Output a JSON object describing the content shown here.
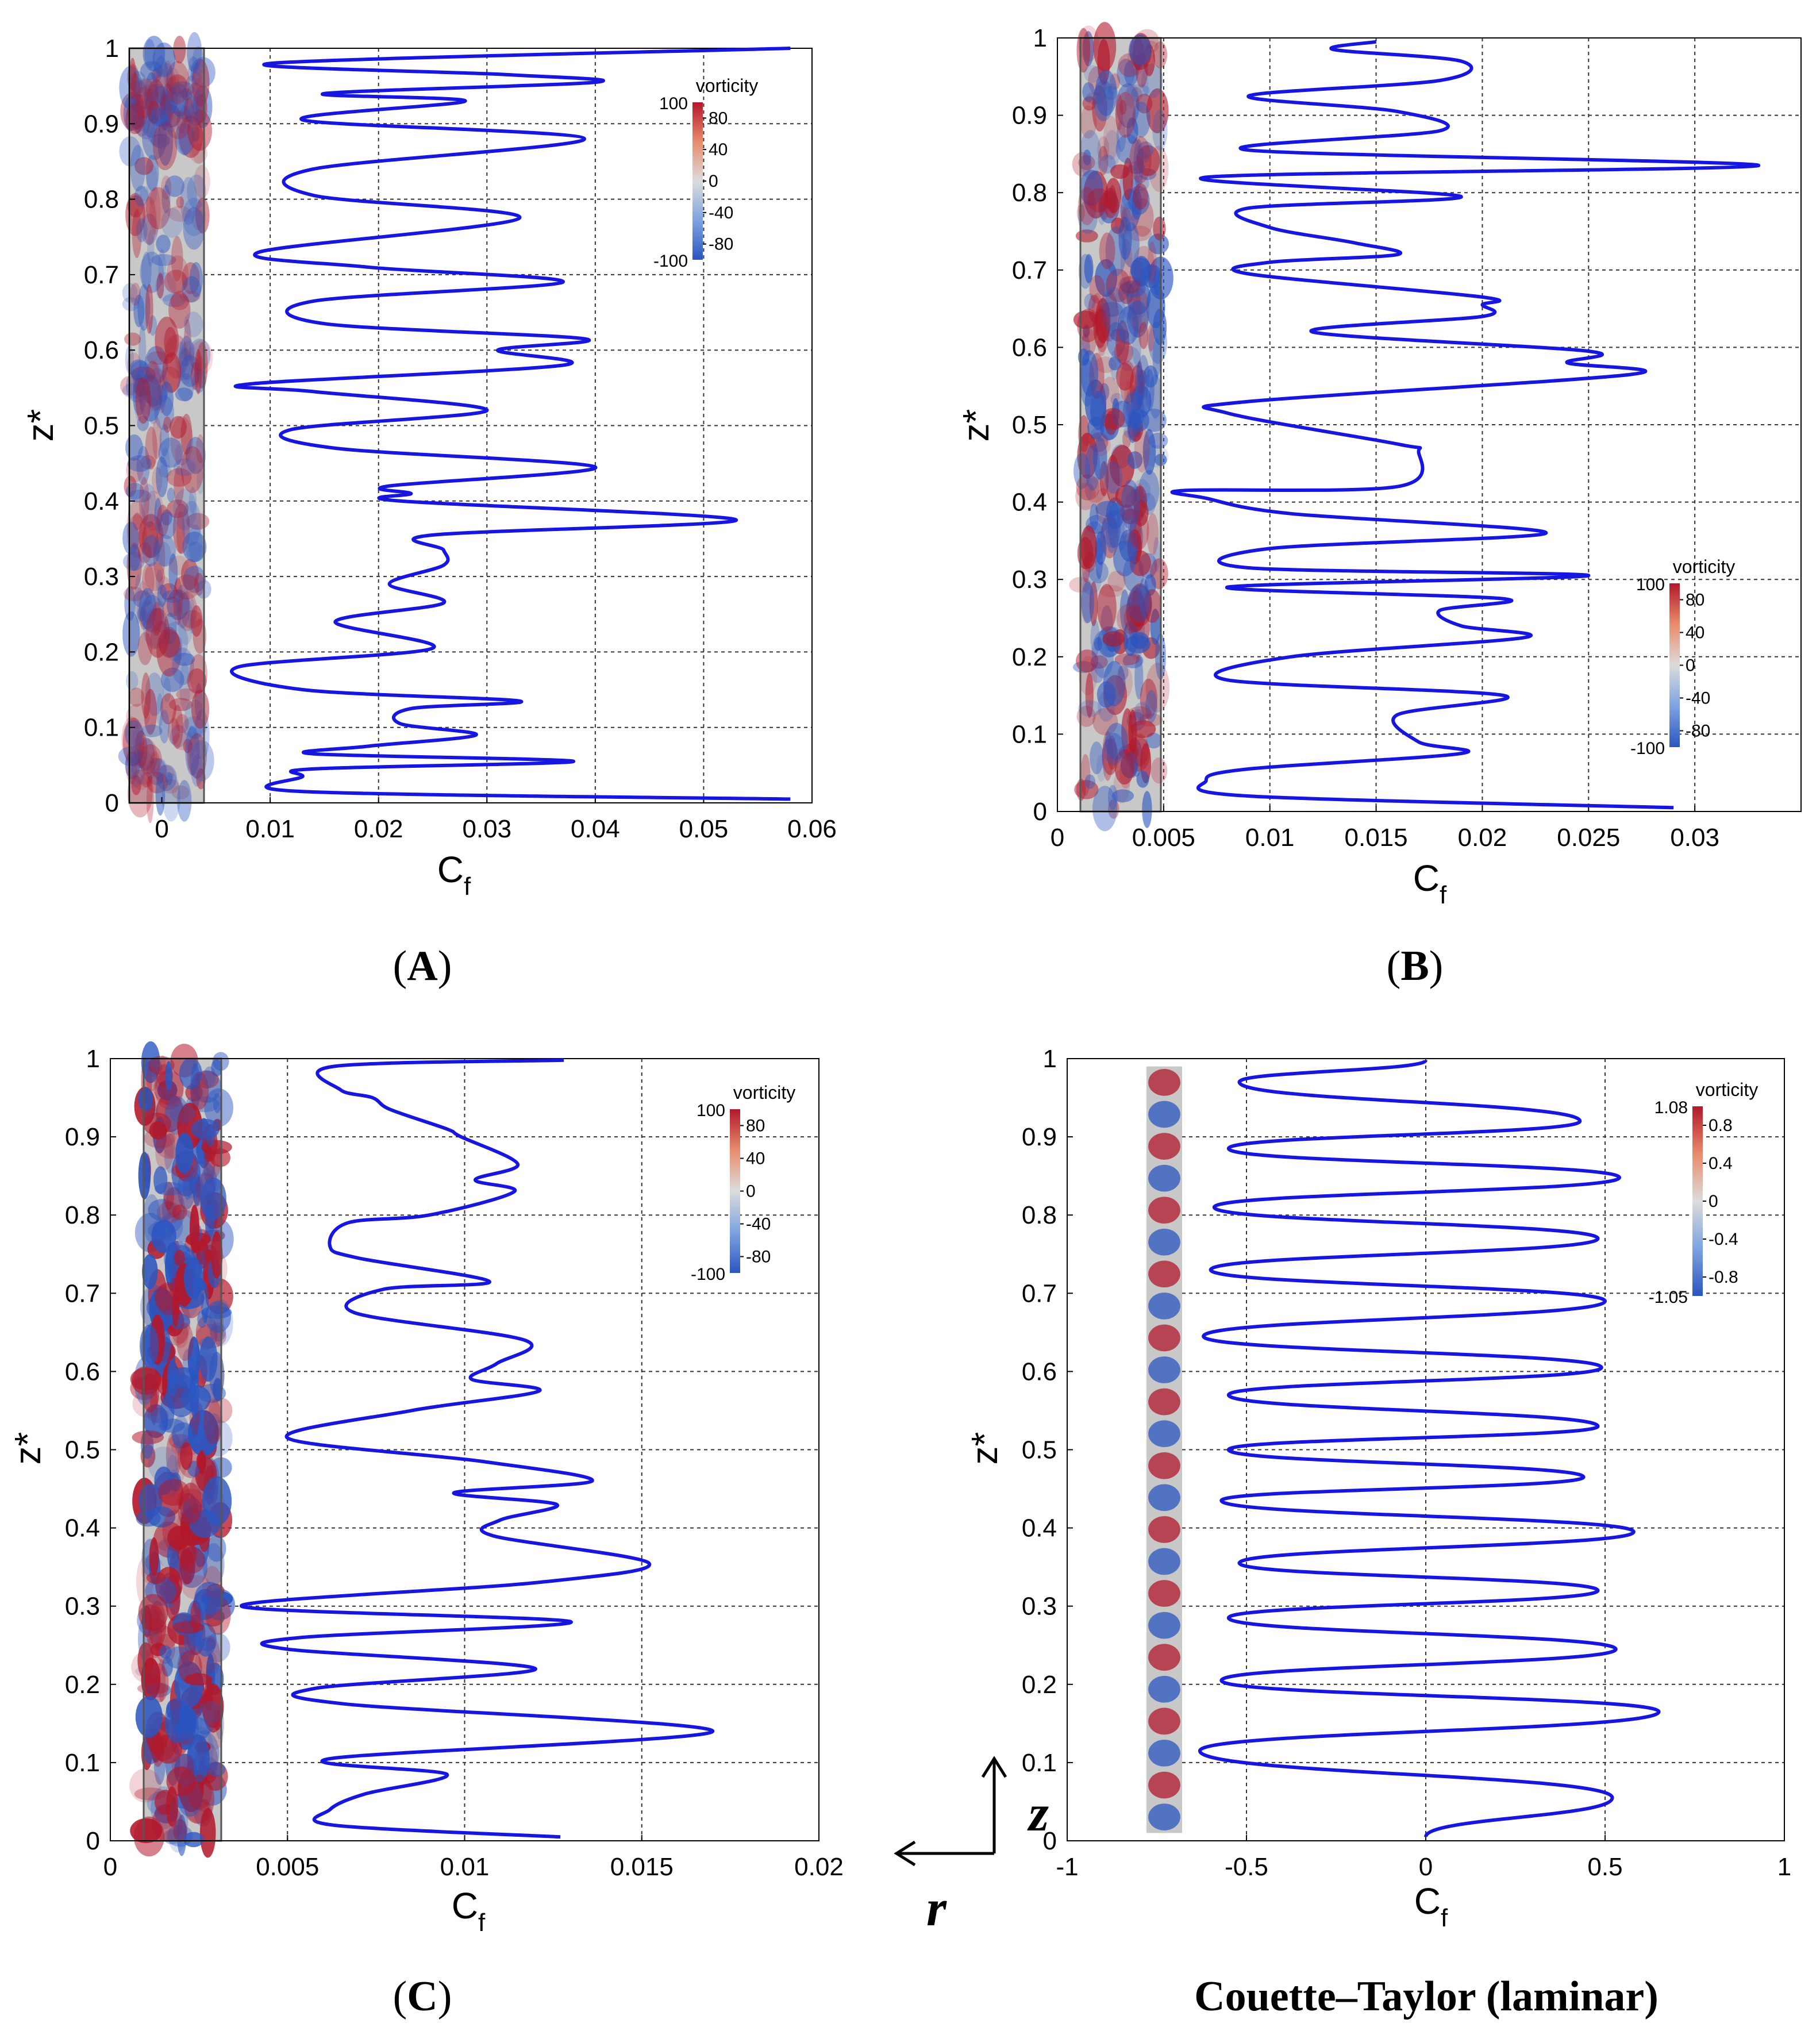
{
  "chart_data": [
    {
      "id": "A",
      "type": "line",
      "caption": "(A)",
      "caption_parts": {
        "open": "(",
        "letter": "A",
        "close": ")"
      },
      "xlabel": "C",
      "xlabel_sub": "f",
      "ylabel": "z*",
      "xlim": [
        -0.003,
        0.06
      ],
      "ylim": [
        0,
        1
      ],
      "xticks": [
        0,
        0.01,
        0.02,
        0.03,
        0.04,
        0.05,
        0.06
      ],
      "xtick_labels": [
        "0",
        "0.01",
        "0.02",
        "0.03",
        "0.04",
        "0.05",
        "0.06"
      ],
      "yticks": [
        0,
        0.1,
        0.2,
        0.3,
        0.4,
        0.5,
        0.6,
        0.7,
        0.8,
        0.9,
        1
      ],
      "ytick_labels": [
        "0",
        "0.1",
        "0.2",
        "0.3",
        "0.4",
        "0.5",
        "0.6",
        "0.7",
        "0.8",
        "0.9",
        "1"
      ],
      "vgrid": [
        0.01,
        0.02,
        0.03,
        0.04,
        0.05
      ],
      "series": [
        {
          "name": "Cf",
          "x": [
            0.058,
            0.013,
            0.013,
            0.014,
            0.038,
            0.014,
            0.019,
            0.029,
            0.022,
            0.023,
            0.033,
            0.013,
            0.007,
            0.025,
            0.016,
            0.026,
            0.021,
            0.026,
            0.026,
            0.025,
            0.053,
            0.022,
            0.023,
            0.021,
            0.04,
            0.016,
            0.012,
            0.03,
            0.014,
            0.008,
            0.037,
            0.031,
            0.039,
            0.015,
            0.014,
            0.037,
            0.019,
            0.009,
            0.033,
            0.014,
            0.014,
            0.039,
            0.013,
            0.028,
            0.015,
            0.04,
            0.032,
            0.01,
            0.058
          ],
          "z": [
            0.005,
            0.015,
            0.035,
            0.045,
            0.055,
            0.065,
            0.075,
            0.09,
            0.105,
            0.125,
            0.135,
            0.15,
            0.18,
            0.205,
            0.24,
            0.265,
            0.29,
            0.315,
            0.335,
            0.355,
            0.375,
            0.4,
            0.41,
            0.42,
            0.445,
            0.47,
            0.495,
            0.52,
            0.545,
            0.555,
            0.58,
            0.6,
            0.615,
            0.635,
            0.665,
            0.69,
            0.71,
            0.73,
            0.775,
            0.805,
            0.84,
            0.88,
            0.905,
            0.93,
            0.94,
            0.955,
            0.965,
            0.98,
            1.0
          ]
        }
      ],
      "colorbar": {
        "title": "vorticity",
        "max_label": "100",
        "min_label": "-100",
        "ticks": [
          "80",
          "40",
          "0",
          "-40",
          "-80"
        ]
      }
    },
    {
      "id": "B",
      "type": "line",
      "caption": "(B)",
      "caption_parts": {
        "open": "(",
        "letter": "B",
        "close": ")"
      },
      "xlabel": "C",
      "xlabel_sub": "f",
      "ylabel": "z*",
      "xlim": [
        0,
        0.035
      ],
      "ylim": [
        0,
        1
      ],
      "xticks": [
        0,
        0.005,
        0.01,
        0.015,
        0.02,
        0.025,
        0.03
      ],
      "xtick_labels": [
        "0",
        "0.005",
        "0.01",
        "0.015",
        "0.02",
        "0.025",
        "0.03"
      ],
      "yticks": [
        0,
        0.1,
        0.2,
        0.3,
        0.4,
        0.5,
        0.6,
        0.7,
        0.8,
        0.9,
        1
      ],
      "ytick_labels": [
        "0",
        "0.1",
        "0.2",
        "0.3",
        "0.4",
        "0.5",
        "0.6",
        "0.7",
        "0.8",
        "0.9",
        "1"
      ],
      "vgrid": [
        0.005,
        0.01,
        0.015,
        0.02,
        0.025,
        0.03
      ],
      "series": [
        {
          "name": "Cf",
          "x": [
            0.029,
            0.009,
            0.007,
            0.009,
            0.019,
            0.017,
            0.016,
            0.021,
            0.008,
            0.011,
            0.022,
            0.019,
            0.018,
            0.021,
            0.008,
            0.025,
            0.009,
            0.01,
            0.023,
            0.011,
            0.007,
            0.006,
            0.016,
            0.017,
            0.016,
            0.008,
            0.009,
            0.027,
            0.024,
            0.025,
            0.012,
            0.02,
            0.02,
            0.02,
            0.009,
            0.01,
            0.016,
            0.014,
            0.01,
            0.009,
            0.019,
            0.007,
            0.033,
            0.009,
            0.018,
            0.016,
            0.009,
            0.018,
            0.019,
            0.013,
            0.015
          ],
          "z": [
            0.005,
            0.02,
            0.04,
            0.055,
            0.075,
            0.09,
            0.125,
            0.15,
            0.17,
            0.2,
            0.225,
            0.24,
            0.26,
            0.275,
            0.29,
            0.305,
            0.315,
            0.34,
            0.36,
            0.385,
            0.405,
            0.415,
            0.42,
            0.465,
            0.475,
            0.515,
            0.53,
            0.565,
            0.58,
            0.595,
            0.62,
            0.64,
            0.655,
            0.665,
            0.695,
            0.71,
            0.72,
            0.735,
            0.755,
            0.78,
            0.795,
            0.82,
            0.835,
            0.855,
            0.88,
            0.905,
            0.925,
            0.945,
            0.97,
            0.985,
            0.995
          ]
        }
      ],
      "colorbar": {
        "title": "vorticity",
        "max_label": "100",
        "min_label": "-100",
        "ticks": [
          "80",
          "40",
          "0",
          "-40",
          "-80"
        ]
      }
    },
    {
      "id": "C",
      "type": "line",
      "caption": "(C)",
      "caption_parts": {
        "open": "(",
        "letter": "C",
        "close": ")"
      },
      "xlabel": "C",
      "xlabel_sub": "f",
      "ylabel": "z*",
      "xlim": [
        0,
        0.02
      ],
      "ylim": [
        0,
        1
      ],
      "xticks": [
        0,
        0.005,
        0.01,
        0.015,
        0.02
      ],
      "xtick_labels": [
        "0",
        "0.005",
        "0.01",
        "0.015",
        "0.02"
      ],
      "yticks": [
        0,
        0.1,
        0.2,
        0.3,
        0.4,
        0.5,
        0.6,
        0.7,
        0.8,
        0.9,
        1
      ],
      "ytick_labels": [
        "0",
        "0.1",
        "0.2",
        "0.3",
        "0.4",
        "0.5",
        "0.6",
        "0.7",
        "0.8",
        "0.9",
        "1"
      ],
      "vgrid": [
        0.005,
        0.01,
        0.015
      ],
      "series": [
        {
          "name": "Cf",
          "x": [
            0.0127,
            0.0063,
            0.0062,
            0.0072,
            0.0095,
            0.0062,
            0.017,
            0.0066,
            0.0058,
            0.012,
            0.005,
            0.0054,
            0.013,
            0.0037,
            0.012,
            0.0152,
            0.0108,
            0.011,
            0.0126,
            0.0097,
            0.0136,
            0.0105,
            0.005,
            0.0085,
            0.0121,
            0.0102,
            0.0109,
            0.0117,
            0.0069,
            0.0077,
            0.0107,
            0.007,
            0.0062,
            0.0067,
            0.009,
            0.0114,
            0.0103,
            0.0115,
            0.0099,
            0.0095,
            0.0079,
            0.0074,
            0.0065,
            0.0063,
            0.0128
          ],
          "z": [
            0.005,
            0.02,
            0.04,
            0.06,
            0.085,
            0.105,
            0.14,
            0.175,
            0.195,
            0.22,
            0.245,
            0.26,
            0.28,
            0.3,
            0.33,
            0.355,
            0.39,
            0.41,
            0.43,
            0.445,
            0.46,
            0.485,
            0.515,
            0.55,
            0.575,
            0.59,
            0.61,
            0.64,
            0.675,
            0.705,
            0.715,
            0.745,
            0.76,
            0.79,
            0.8,
            0.83,
            0.845,
            0.865,
            0.9,
            0.91,
            0.935,
            0.95,
            0.96,
            0.99,
            0.998
          ]
        }
      ],
      "colorbar": {
        "title": "vorticity",
        "max_label": "100",
        "min_label": "-100",
        "ticks": [
          "80",
          "40",
          "0",
          "-40",
          "-80"
        ]
      }
    },
    {
      "id": "D",
      "type": "line",
      "caption": "Couette–Taylor (laminar)",
      "xlabel": "C",
      "xlabel_sub": "f",
      "ylabel": "z*",
      "xlim": [
        -1,
        1
      ],
      "ylim": [
        0,
        1
      ],
      "xticks": [
        -1,
        -0.5,
        0,
        0.5,
        1
      ],
      "xtick_labels": [
        "-1",
        "-0.5",
        "0",
        "0.5",
        "1"
      ],
      "yticks": [
        0,
        0.1,
        0.2,
        0.3,
        0.4,
        0.5,
        0.6,
        0.7,
        0.8,
        0.9,
        1
      ],
      "ytick_labels": [
        "0",
        "0.1",
        "0.2",
        "0.3",
        "0.4",
        "0.5",
        "0.6",
        "0.7",
        "0.8",
        "0.9",
        "1"
      ],
      "vgrid": [
        -0.5,
        0,
        0.5
      ],
      "series": [
        {
          "name": "Cf",
          "peaks_right": [
            {
              "z": 0.055,
              "x": 0.52
            },
            {
              "z": 0.165,
              "x": 0.65
            },
            {
              "z": 0.245,
              "x": 0.53
            },
            {
              "z": 0.32,
              "x": 0.48
            },
            {
              "z": 0.395,
              "x": 0.58
            },
            {
              "z": 0.465,
              "x": 0.44
            },
            {
              "z": 0.53,
              "x": 0.48
            },
            {
              "z": 0.605,
              "x": 0.49
            },
            {
              "z": 0.69,
              "x": 0.5
            },
            {
              "z": 0.77,
              "x": 0.48
            },
            {
              "z": 0.848,
              "x": 0.54
            },
            {
              "z": 0.92,
              "x": 0.43
            }
          ],
          "peaks_left": [
            {
              "z": 0.115,
              "x": -0.63
            },
            {
              "z": 0.205,
              "x": -0.57
            },
            {
              "z": 0.285,
              "x": -0.55
            },
            {
              "z": 0.355,
              "x": -0.52
            },
            {
              "z": 0.435,
              "x": -0.57
            },
            {
              "z": 0.5,
              "x": -0.55
            },
            {
              "z": 0.57,
              "x": -0.55
            },
            {
              "z": 0.645,
              "x": -0.62
            },
            {
              "z": 0.73,
              "x": -0.6
            },
            {
              "z": 0.81,
              "x": -0.59
            },
            {
              "z": 0.885,
              "x": -0.55
            },
            {
              "z": 0.97,
              "x": -0.52
            }
          ],
          "start": {
            "z": 0.005,
            "x": 0.0
          },
          "end": {
            "z": 0.998,
            "x": 0.0
          }
        }
      ],
      "colorbar": {
        "title": "vorticity",
        "max_label": "1.08",
        "min_label": "-1.05",
        "ticks": [
          "0.8",
          "0.4",
          "0",
          "-0.4",
          "-0.8"
        ]
      }
    }
  ],
  "axes_indicator": {
    "vertical_symbol": "z",
    "horizontal_symbol": "r"
  },
  "colors": {
    "curve": "#1616e0",
    "vort_pos": "#b2182b",
    "vort_neg": "#2b55c0",
    "vort_zero": "#c8c8c8"
  }
}
